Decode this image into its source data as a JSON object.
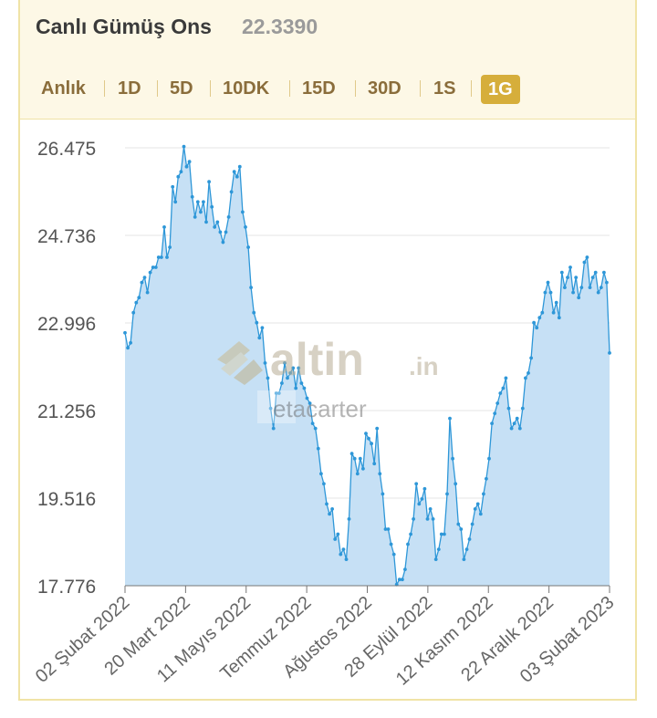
{
  "header": {
    "title": "Canlı Gümüş Ons",
    "price": "22.3390"
  },
  "tabs": [
    "Anlık",
    "1D",
    "5D",
    "10DK",
    "15D",
    "30D",
    "1S",
    "1G"
  ],
  "active_tab": "1G",
  "watermark": {
    "brand": "altin",
    "brand_suffix": ".in",
    "user": "etacarter"
  },
  "colors": {
    "line": "#2e97d8",
    "fill": "#c6e0f5",
    "accent": "#d6ae3b",
    "tab_text": "#8a6d3b"
  },
  "chart_data": {
    "type": "area",
    "title": "",
    "xlabel": "",
    "ylabel": "",
    "ylim": [
      17.776,
      26.475
    ],
    "yticks": [
      "26.475",
      "24.736",
      "22.996",
      "21.256",
      "19.516",
      "17.776"
    ],
    "xticks": [
      "02 Şubat 2022",
      "20 Mart 2022",
      "11 Mayıs 2022",
      "Temmuz 2022",
      "Ağustos 2022",
      "28 Eylül 2022",
      "12 Kasım 2022",
      "22 Aralık 2022",
      "03 Şubat 2023"
    ],
    "grid": true,
    "series": [
      {
        "values": [
          22.8,
          22.5,
          22.6,
          23.2,
          23.4,
          23.5,
          23.8,
          23.9,
          23.6,
          24.0,
          24.1,
          24.1,
          24.3,
          24.3,
          24.9,
          24.3,
          24.5,
          25.7,
          25.4,
          25.9,
          26.0,
          26.5,
          26.1,
          26.2,
          25.5,
          25.1,
          25.4,
          25.2,
          25.4,
          25.0,
          25.8,
          25.3,
          24.9,
          25.0,
          24.8,
          24.6,
          24.8,
          25.1,
          25.6,
          26.0,
          25.9,
          26.1,
          25.2,
          24.9,
          24.5,
          23.7,
          23.2,
          23.0,
          22.7,
          22.9,
          22.2,
          21.9,
          21.3,
          20.9,
          21.6,
          21.6,
          21.8,
          22.2,
          21.9,
          22.0,
          22.1,
          21.7,
          22.1,
          21.8,
          21.7,
          21.5,
          21.4,
          21.0,
          20.9,
          20.5,
          20.0,
          19.8,
          19.4,
          19.2,
          19.3,
          18.7,
          18.8,
          18.4,
          18.5,
          18.3,
          19.1,
          20.4,
          20.3,
          20.0,
          20.3,
          20.1,
          20.8,
          20.7,
          20.6,
          20.2,
          20.9,
          20.0,
          19.6,
          18.9,
          18.9,
          18.6,
          18.4,
          17.8,
          17.9,
          17.9,
          18.1,
          18.6,
          18.8,
          19.1,
          19.8,
          19.4,
          19.5,
          19.7,
          19.1,
          19.3,
          19.1,
          18.3,
          18.5,
          18.8,
          18.8,
          19.6,
          21.1,
          20.3,
          19.8,
          19.0,
          18.9,
          18.3,
          18.5,
          18.7,
          19.0,
          19.3,
          19.4,
          19.2,
          19.6,
          19.9,
          20.3,
          21.0,
          21.2,
          21.4,
          21.6,
          21.7,
          21.9,
          21.3,
          20.9,
          21.0,
          21.1,
          20.9,
          21.3,
          21.9,
          22.0,
          22.3,
          23.0,
          22.9,
          23.1,
          23.2,
          23.6,
          23.8,
          23.6,
          23.2,
          23.4,
          23.1,
          24.0,
          23.7,
          23.9,
          24.1,
          23.6,
          23.9,
          23.5,
          23.7,
          24.2,
          24.3,
          23.7,
          23.9,
          24.0,
          23.6,
          23.7,
          24.0,
          23.8,
          22.4
        ]
      }
    ]
  }
}
